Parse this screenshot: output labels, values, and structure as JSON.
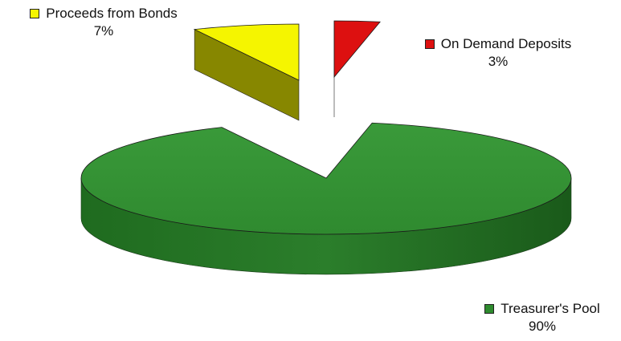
{
  "chart_data": {
    "type": "pie",
    "title": "",
    "slices": [
      {
        "label": "Treasurer's Pool",
        "value": 90,
        "pct_label": "90%",
        "color": "#2e8b2e"
      },
      {
        "label": "Proceeds from Bonds",
        "value": 7,
        "pct_label": "7%",
        "color": "#f5f500"
      },
      {
        "label": "On Demand Deposits",
        "value": 3,
        "pct_label": "3%",
        "color": "#dd1010"
      }
    ],
    "three_d": true,
    "exploded": [
      "Proceeds from Bonds",
      "On Demand Deposits"
    ]
  }
}
